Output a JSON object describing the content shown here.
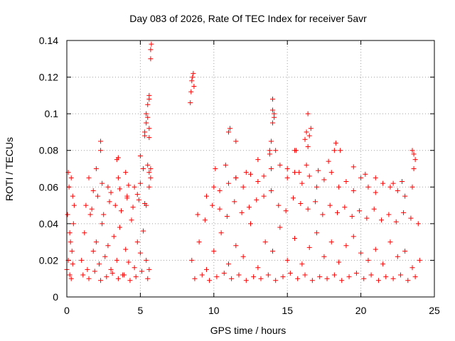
{
  "chart_data": {
    "type": "scatter",
    "title": "Day 083 of 2026, Rate Of TEC Index for receiver 5avr",
    "xlabel": "GPS time / hours",
    "ylabel": "ROTI / TECUs",
    "xlim": [
      0,
      25
    ],
    "ylim": [
      0,
      0.14
    ],
    "xticks": [
      "0",
      "5",
      "10",
      "15",
      "20",
      "25"
    ],
    "yticks": [
      "0",
      "0.02",
      "0.04",
      "0.06",
      "0.08",
      "0.1",
      "0.12",
      "0.14"
    ],
    "grid": true,
    "marker": "+",
    "color": "#ff0000",
    "series": [
      {
        "x": [
          0.0,
          0.05,
          0.1,
          0.15,
          0.2,
          0.25,
          0.3,
          0.35,
          0.4,
          0.45,
          0.5,
          0.1,
          0.2,
          0.3,
          0.4,
          1.0,
          1.2,
          1.4,
          1.6,
          1.8,
          2.0,
          2.2,
          2.4,
          2.6,
          2.8,
          3.0,
          3.2,
          3.4,
          3.6,
          3.8,
          4.0,
          4.2,
          4.4,
          4.6,
          4.8,
          5.0,
          5.2,
          5.4,
          5.6,
          1.1,
          1.5,
          1.9,
          2.3,
          2.7,
          3.1,
          3.5,
          3.9,
          4.3,
          4.7,
          5.1,
          5.5,
          1.3,
          1.7,
          2.1,
          2.5,
          2.9,
          3.3,
          3.7,
          4.1,
          4.5,
          4.9,
          5.3,
          1.5,
          2.0,
          2.3,
          2.8,
          3.4,
          3.5,
          4.0,
          4.1,
          4.6,
          5.0,
          5.2,
          5.4,
          5.5,
          5.6,
          1.8,
          2.4,
          3.0,
          3.6,
          4.2,
          4.8,
          2.3,
          3.5,
          5.0,
          5.3,
          5.4,
          5.6,
          5.6,
          5.7,
          5.7,
          5.75,
          5.3,
          5.4,
          5.5,
          5.5,
          5.6,
          5.6,
          5.6,
          5.7,
          5.7,
          8.4,
          8.45,
          8.5,
          8.55,
          8.6,
          8.65,
          8.5,
          9.0,
          9.5,
          10.0,
          10.5,
          11.0,
          11.5,
          12.0,
          12.5,
          13.0,
          13.5,
          14.0,
          14.5,
          15.0,
          15.5,
          16.0,
          16.5,
          17.0,
          17.5,
          18.0,
          18.5,
          19.0,
          19.5,
          20.0,
          20.5,
          21.0,
          21.5,
          22.0,
          22.5,
          23.0,
          23.5,
          24.0,
          8.7,
          9.2,
          9.7,
          10.2,
          10.7,
          11.2,
          11.7,
          12.2,
          12.7,
          13.2,
          13.7,
          14.2,
          14.7,
          15.2,
          15.7,
          16.2,
          16.7,
          17.2,
          17.7,
          18.2,
          18.7,
          19.2,
          19.7,
          20.2,
          20.7,
          21.2,
          21.7,
          22.2,
          22.7,
          23.2,
          23.7,
          8.9,
          9.4,
          9.9,
          10.4,
          10.9,
          11.4,
          11.9,
          12.4,
          12.9,
          13.4,
          13.9,
          14.4,
          14.9,
          15.4,
          15.9,
          16.4,
          16.9,
          17.4,
          17.9,
          18.4,
          18.9,
          19.4,
          19.9,
          20.4,
          20.9,
          21.4,
          21.9,
          22.4,
          22.9,
          23.4,
          23.9,
          9.5,
          10.0,
          10.4,
          11.0,
          11.5,
          12.0,
          12.5,
          13.0,
          13.4,
          13.9,
          14.5,
          15.0,
          15.5,
          16.0,
          16.5,
          17.0,
          17.5,
          18.0,
          18.5,
          19.0,
          19.5,
          20.0,
          20.5,
          21.0,
          21.5,
          22.0,
          22.5,
          23.0,
          23.5,
          10.1,
          10.8,
          11.5,
          12.2,
          13.0,
          13.8,
          14.2,
          15.0,
          15.8,
          16.3,
          17.1,
          17.8,
          18.6,
          19.5,
          20.3,
          21.0,
          22.2,
          22.8,
          23.6,
          11.0,
          11.1,
          11.5,
          13.8,
          13.9,
          14.0,
          14.1,
          14.0,
          15.5,
          15.6,
          16.2,
          16.3,
          16.4,
          16.5,
          16.6,
          18.2,
          18.3,
          23.5,
          23.6,
          23.7,
          14.0,
          14.1,
          16.4
        ],
        "y": [
          0.015,
          0.045,
          0.02,
          0.06,
          0.012,
          0.03,
          0.065,
          0.025,
          0.018,
          0.04,
          0.05,
          0.068,
          0.035,
          0.01,
          0.055,
          0.02,
          0.035,
          0.015,
          0.045,
          0.025,
          0.03,
          0.018,
          0.04,
          0.022,
          0.028,
          0.015,
          0.033,
          0.02,
          0.038,
          0.012,
          0.026,
          0.019,
          0.042,
          0.016,
          0.03,
          0.024,
          0.036,
          0.02,
          0.015,
          0.012,
          0.01,
          0.014,
          0.009,
          0.011,
          0.013,
          0.01,
          0.012,
          0.009,
          0.011,
          0.014,
          0.01,
          0.05,
          0.048,
          0.055,
          0.045,
          0.052,
          0.05,
          0.047,
          0.054,
          0.049,
          0.053,
          0.051,
          0.065,
          0.07,
          0.08,
          0.06,
          0.075,
          0.065,
          0.068,
          0.055,
          0.06,
          0.062,
          0.07,
          0.05,
          0.072,
          0.068,
          0.058,
          0.062,
          0.057,
          0.059,
          0.061,
          0.056,
          0.085,
          0.076,
          0.077,
          0.088,
          0.1,
          0.108,
          0.11,
          0.13,
          0.135,
          0.138,
          0.09,
          0.095,
          0.105,
          0.098,
          0.092,
          0.087,
          0.06,
          0.065,
          0.07,
          0.106,
          0.112,
          0.118,
          0.12,
          0.122,
          0.115,
          0.02,
          0.03,
          0.015,
          0.025,
          0.035,
          0.018,
          0.028,
          0.022,
          0.04,
          0.016,
          0.03,
          0.025,
          0.038,
          0.02,
          0.032,
          0.018,
          0.027,
          0.035,
          0.022,
          0.03,
          0.019,
          0.028,
          0.033,
          0.024,
          0.02,
          0.026,
          0.018,
          0.03,
          0.022,
          0.025,
          0.016,
          0.02,
          0.01,
          0.012,
          0.009,
          0.011,
          0.013,
          0.01,
          0.012,
          0.009,
          0.011,
          0.01,
          0.012,
          0.009,
          0.011,
          0.013,
          0.01,
          0.012,
          0.009,
          0.011,
          0.01,
          0.012,
          0.009,
          0.011,
          0.013,
          0.01,
          0.012,
          0.009,
          0.011,
          0.01,
          0.012,
          0.009,
          0.011,
          0.045,
          0.042,
          0.05,
          0.048,
          0.044,
          0.052,
          0.046,
          0.049,
          0.053,
          0.055,
          0.058,
          0.05,
          0.047,
          0.054,
          0.051,
          0.048,
          0.052,
          0.045,
          0.05,
          0.046,
          0.049,
          0.044,
          0.047,
          0.043,
          0.048,
          0.042,
          0.045,
          0.041,
          0.046,
          0.043,
          0.04,
          0.055,
          0.06,
          0.058,
          0.062,
          0.065,
          0.06,
          0.067,
          0.063,
          0.066,
          0.07,
          0.072,
          0.065,
          0.068,
          0.062,
          0.066,
          0.06,
          0.064,
          0.068,
          0.06,
          0.063,
          0.058,
          0.065,
          0.06,
          0.057,
          0.062,
          0.06,
          0.058,
          0.055,
          0.06,
          0.07,
          0.072,
          0.065,
          0.068,
          0.075,
          0.078,
          0.08,
          0.07,
          0.068,
          0.072,
          0.069,
          0.074,
          0.08,
          0.071,
          0.067,
          0.065,
          0.062,
          0.063,
          0.07,
          0.09,
          0.092,
          0.085,
          0.08,
          0.085,
          0.095,
          0.1,
          0.102,
          0.08,
          0.08,
          0.086,
          0.09,
          0.082,
          0.088,
          0.092,
          0.08,
          0.084,
          0.08,
          0.078,
          0.075,
          0.108,
          0.098,
          0.1
        ]
      }
    ]
  }
}
